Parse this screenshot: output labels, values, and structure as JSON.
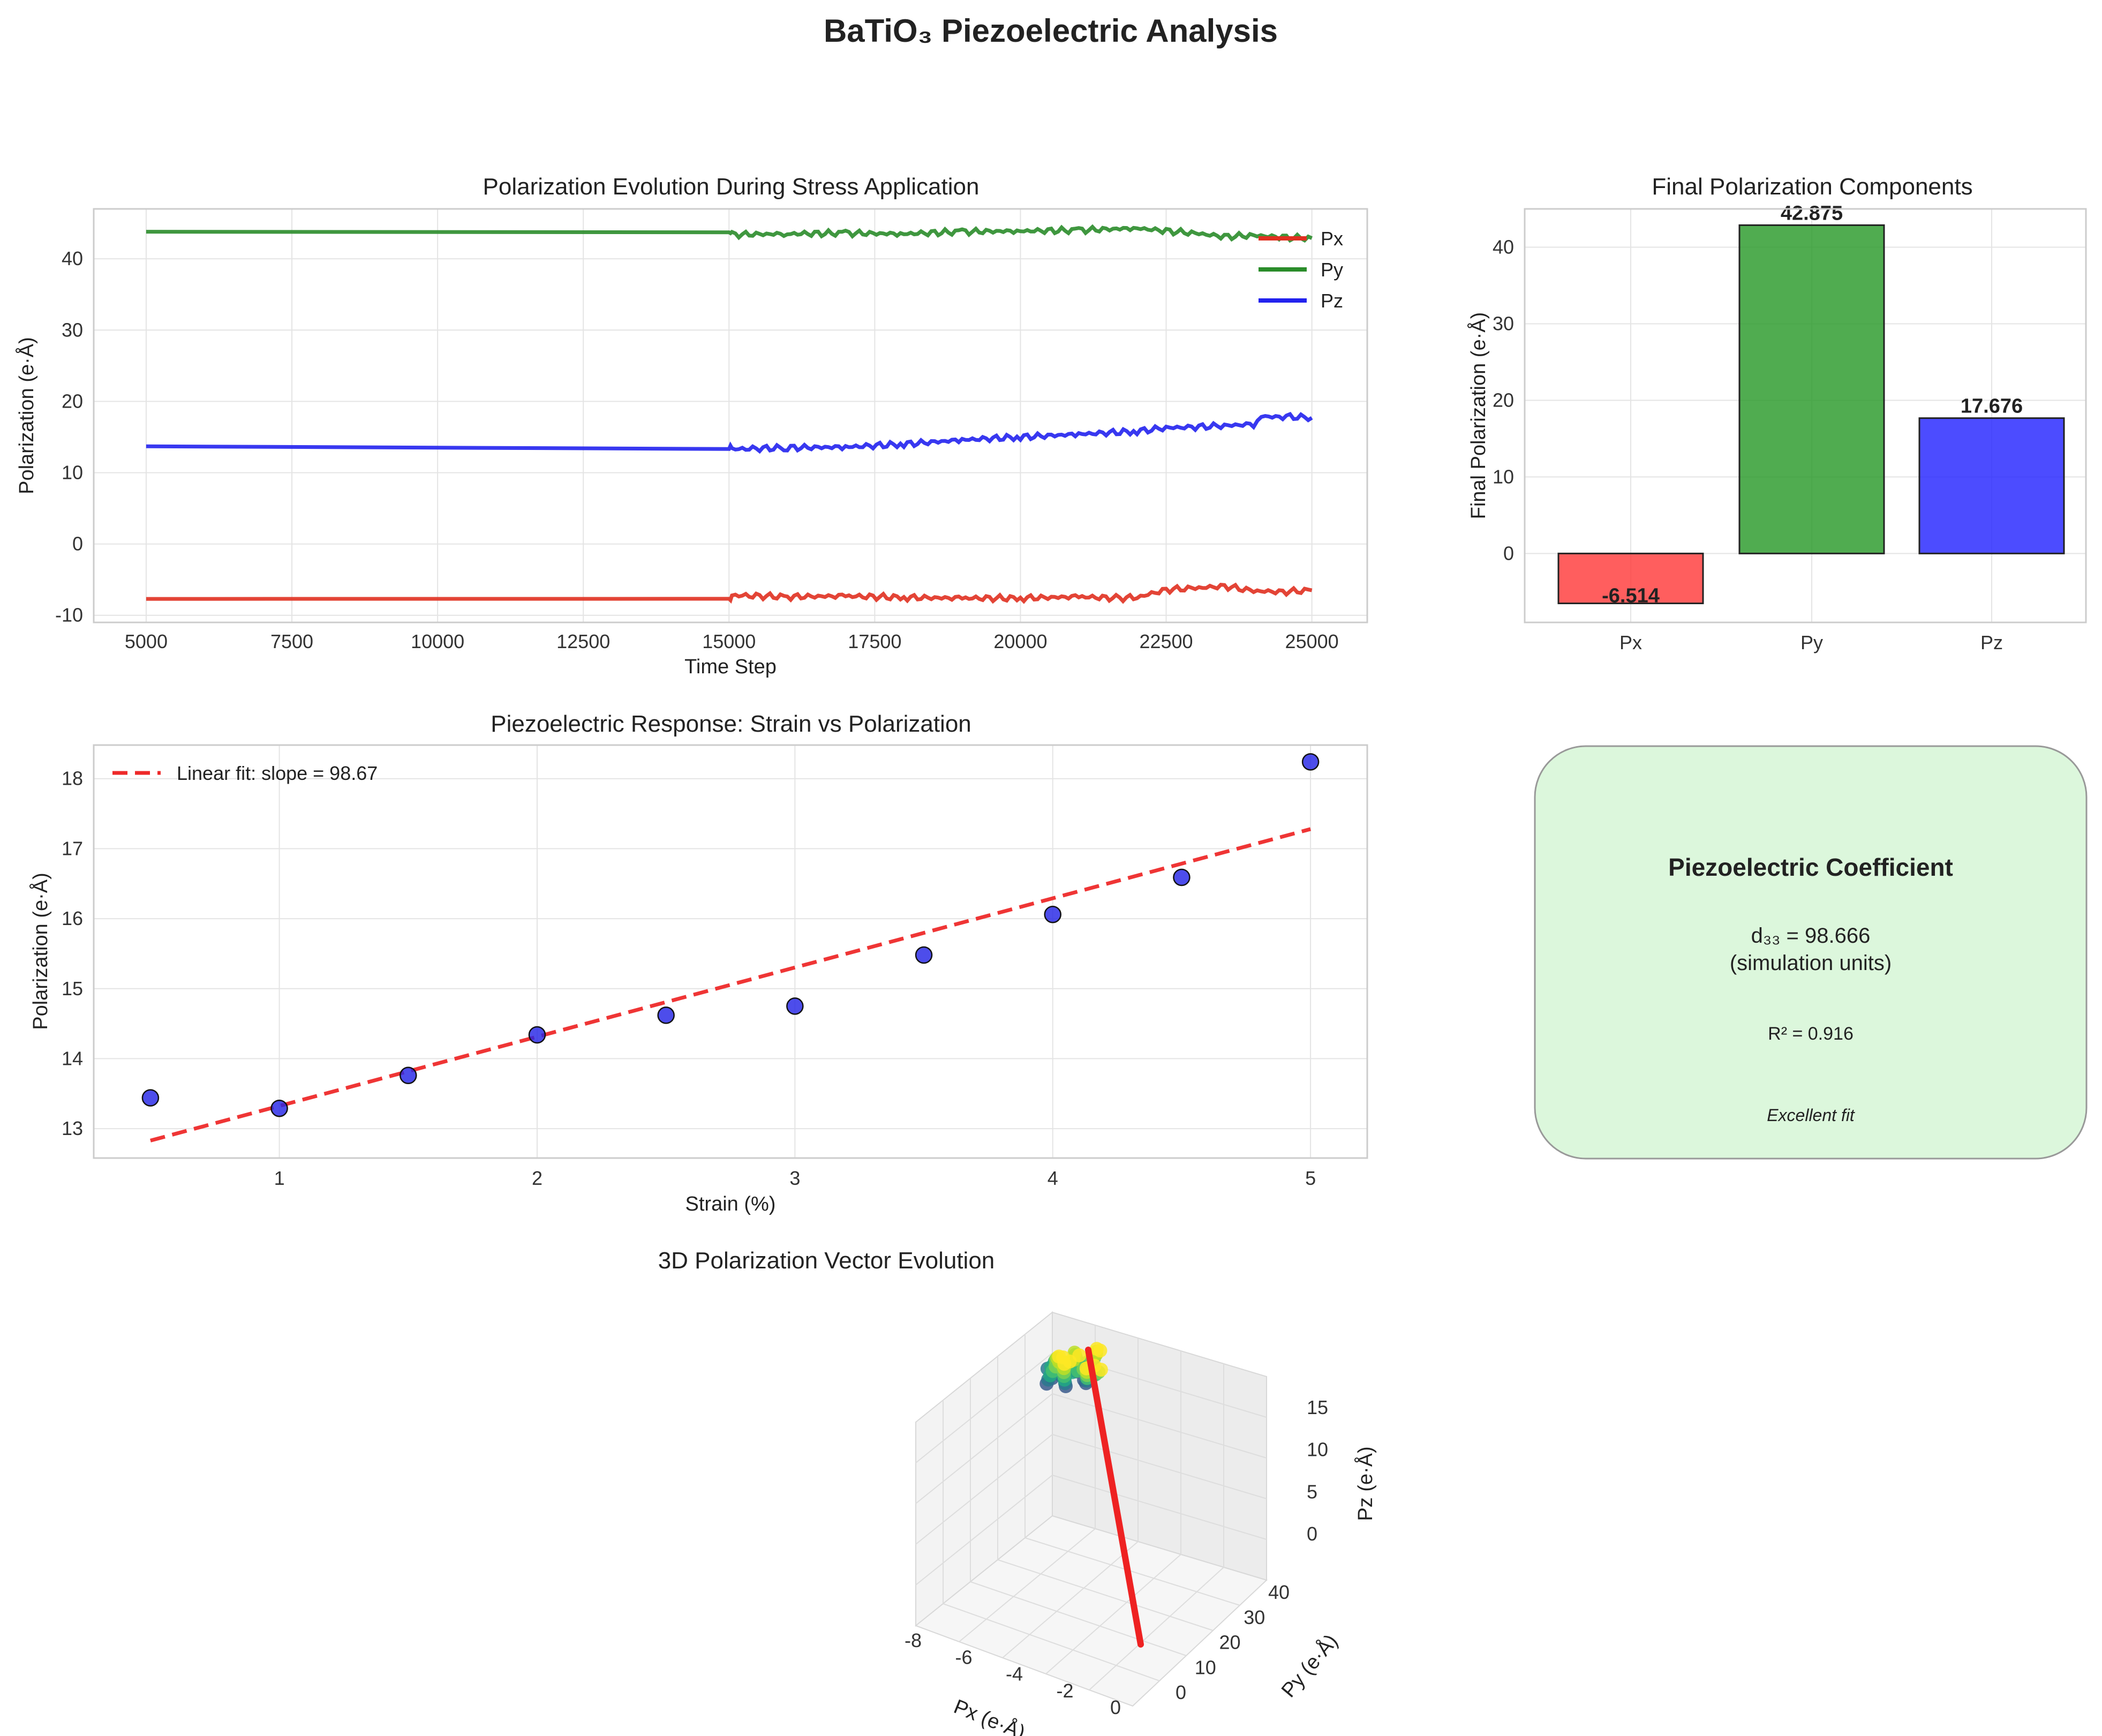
{
  "figure": {
    "title": "BaTiO₃ Piezoelectric Analysis"
  },
  "chart_data": [
    {
      "type": "line",
      "title": "Polarization Evolution During Stress Application",
      "xlabel": "Time Step",
      "ylabel": "Polarization (e·Å)",
      "xlim": [
        4100,
        25950
      ],
      "ylim": [
        -11,
        47
      ],
      "xticks": [
        5000,
        7500,
        10000,
        12500,
        15000,
        17500,
        20000,
        22500,
        25000
      ],
      "yticks": [
        -10,
        0,
        10,
        20,
        30,
        40
      ],
      "grid": true,
      "legend_position": "upper right",
      "series": [
        {
          "name": "Px",
          "color": "#e03020",
          "x": [
            5000,
            15000,
            15050,
            16000,
            17000,
            18000,
            19000,
            20000,
            21000,
            21700,
            22000,
            22500,
            23000,
            23500,
            24000,
            24500,
            25000
          ],
          "y": [
            -7.7,
            -7.7,
            -7.2,
            -7.4,
            -7.3,
            -7.5,
            -7.6,
            -7.6,
            -7.4,
            -7.6,
            -7.5,
            -6.4,
            -6.2,
            -5.9,
            -6.6,
            -6.7,
            -6.5
          ]
        },
        {
          "name": "Py",
          "color": "#2a8c2a",
          "x": [
            5000,
            15000,
            15050,
            16000,
            17000,
            18000,
            19000,
            20000,
            21000,
            22000,
            22500,
            23000,
            23500,
            24000,
            24500,
            25000
          ],
          "y": [
            43.8,
            43.8,
            43.4,
            43.5,
            43.6,
            43.5,
            43.8,
            43.9,
            44.0,
            44.3,
            43.9,
            43.6,
            43.1,
            43.3,
            43.0,
            42.9
          ]
        },
        {
          "name": "Pz",
          "color": "#2222ee",
          "x": [
            5000,
            15000,
            15050,
            16000,
            17000,
            18000,
            19000,
            20000,
            21000,
            22000,
            22500,
            23000,
            23500,
            24000,
            24200,
            24500,
            25000
          ],
          "y": [
            13.7,
            13.7,
            13.3,
            13.5,
            13.6,
            14.0,
            14.6,
            15.0,
            15.4,
            15.8,
            16.3,
            16.4,
            16.6,
            16.8,
            17.8,
            17.9,
            17.7
          ]
        }
      ]
    },
    {
      "type": "bar",
      "title": "Final Polarization Components",
      "ylabel": "Final Polarization (e·Å)",
      "categories": [
        "Px",
        "Py",
        "Pz"
      ],
      "values": [
        -6.514,
        42.875,
        17.676
      ],
      "value_labels": [
        "-6.514",
        "42.875",
        "17.676"
      ],
      "colors": [
        "#ff3a3a",
        "#2a9a2a",
        "#2424ff"
      ],
      "ylim": [
        -9,
        45
      ],
      "yticks": [
        0,
        10,
        20,
        30,
        40
      ],
      "grid": true
    },
    {
      "type": "scatter",
      "title": "Piezoelectric Response: Strain vs Polarization",
      "xlabel": "Strain (%)",
      "ylabel": "Polarization (e·Å)",
      "xlim": [
        0.28,
        5.22
      ],
      "ylim": [
        12.58,
        18.48
      ],
      "xticks": [
        1,
        2,
        3,
        4,
        5
      ],
      "yticks": [
        13,
        14,
        15,
        16,
        17,
        18
      ],
      "grid": true,
      "legend_position": "upper left",
      "points": {
        "x": [
          0.5,
          1.0,
          1.5,
          2.0,
          2.5,
          3.0,
          3.5,
          4.0,
          4.5,
          5.0
        ],
        "y": [
          13.44,
          13.29,
          13.76,
          14.34,
          14.62,
          14.75,
          15.48,
          16.06,
          16.59,
          18.24
        ],
        "color": "#2626e6"
      },
      "fit": {
        "name": "Linear fit: slope = 98.67",
        "x": [
          0.5,
          5.0
        ],
        "y": [
          12.83,
          17.28
        ],
        "color": "#ee2a2a"
      }
    },
    {
      "type": "scatter",
      "title": "3D Polarization Vector Evolution",
      "xlabel": "Px (e·Å)",
      "ylabel": "Py (e·Å)",
      "zlabel": "Pz (e·Å)",
      "xticks": [
        -8,
        -6,
        -4,
        -2,
        0
      ],
      "yticks": [
        0,
        10,
        20,
        30,
        40
      ],
      "zticks": [
        0,
        5,
        10,
        15
      ],
      "vector_color": "#ee2222"
    }
  ],
  "info_box": {
    "title": "Piezoelectric Coefficient",
    "coefficient": "d₃₃ = 98.666",
    "units": "(simulation units)",
    "r_squared": "R² = 0.916",
    "quality": "Excellent fit",
    "background": "#dcf7dc",
    "border": "#999999"
  }
}
